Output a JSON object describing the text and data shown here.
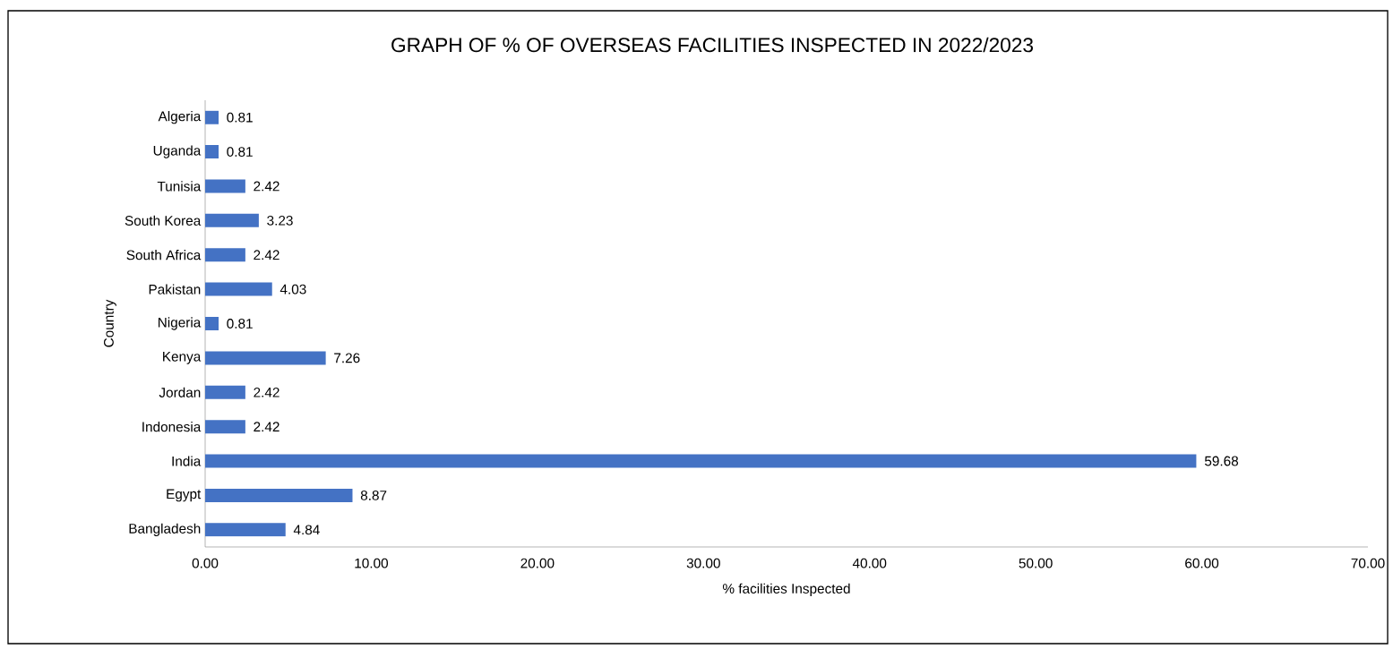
{
  "chart_data": {
    "type": "bar",
    "orientation": "horizontal",
    "title": "GRAPH OF % OF OVERSEAS FACILITIES INSPECTED IN 2022/2023",
    "xlabel": "% facilities Inspected",
    "ylabel": "Country",
    "categories": [
      "Algeria",
      "Uganda",
      "Tunisia",
      "South Korea",
      "South Africa",
      "Pakistan",
      "Nigeria",
      "Kenya",
      "Jordan",
      "Indonesia",
      "India",
      "Egypt",
      "Bangladesh"
    ],
    "values": [
      0.81,
      0.81,
      2.42,
      3.23,
      2.42,
      4.03,
      0.81,
      7.26,
      2.42,
      2.42,
      59.68,
      8.87,
      4.84
    ],
    "color": "#4472c4",
    "data_labels": true,
    "xlim": [
      0,
      70
    ],
    "xticks": [
      {
        "value": 0,
        "label": "0.00"
      },
      {
        "value": 10,
        "label": "10.00"
      },
      {
        "value": 20,
        "label": "20.00"
      },
      {
        "value": 30,
        "label": "30.00"
      },
      {
        "value": 40,
        "label": "40.00"
      },
      {
        "value": 50,
        "label": "50.00"
      },
      {
        "value": 60,
        "label": "60.00"
      },
      {
        "value": 70,
        "label": "70.00"
      }
    ]
  }
}
